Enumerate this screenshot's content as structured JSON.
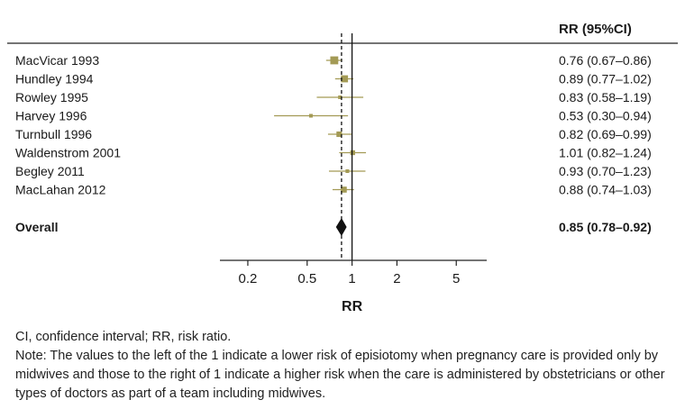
{
  "header": {
    "rr_column": "RR (95%CI)"
  },
  "chart_data": {
    "type": "forest",
    "x_scale": "log",
    "xlabel": "RR",
    "xlim": [
      0.13,
      8
    ],
    "x_ticks": [
      0.2,
      0.5,
      1,
      2,
      5
    ],
    "x_tick_labels": [
      "0.2",
      "0.5",
      "1",
      "2",
      "5"
    ],
    "reference_line": 1,
    "overall_line": 0.85,
    "colors": {
      "study": "#a39a55",
      "overall": "#111111",
      "line": "#111111"
    },
    "studies": [
      {
        "label": "MacVicar 1993",
        "rr": 0.76,
        "lo": 0.67,
        "hi": 0.86,
        "text": "0.76 (0.67–0.86)"
      },
      {
        "label": "Hundley 1994",
        "rr": 0.89,
        "lo": 0.77,
        "hi": 1.02,
        "text": "0.89 (0.77–1.02)"
      },
      {
        "label": "Rowley 1995",
        "rr": 0.83,
        "lo": 0.58,
        "hi": 1.19,
        "text": "0.83 (0.58–1.19)"
      },
      {
        "label": "Harvey 1996",
        "rr": 0.53,
        "lo": 0.3,
        "hi": 0.94,
        "text": "0.53 (0.30–0.94)"
      },
      {
        "label": "Turnbull 1996",
        "rr": 0.82,
        "lo": 0.69,
        "hi": 0.99,
        "text": "0.82 (0.69–0.99)"
      },
      {
        "label": "Waldenstrom 2001",
        "rr": 1.01,
        "lo": 0.82,
        "hi": 1.24,
        "text": "1.01 (0.82–1.24)"
      },
      {
        "label": "Begley 2011",
        "rr": 0.93,
        "lo": 0.7,
        "hi": 1.23,
        "text": "0.93 (0.70–1.23)"
      },
      {
        "label": "MacLahan 2012",
        "rr": 0.88,
        "lo": 0.74,
        "hi": 1.03,
        "text": "0.88 (0.74–1.03)"
      }
    ],
    "overall": {
      "label": "Overall",
      "rr": 0.85,
      "lo": 0.78,
      "hi": 0.92,
      "text": "0.85 (0.78–0.92)"
    }
  },
  "footnote": {
    "abbreviations": "CI, confidence interval; RR, risk ratio.",
    "note": "Note: The values to the left of the 1 indicate a lower risk of episiotomy when pregnancy care is provided only by midwives and those to the right of 1 indicate a higher risk when the care is administered by obstetricians or other types of doctors as part of a team including midwives."
  }
}
